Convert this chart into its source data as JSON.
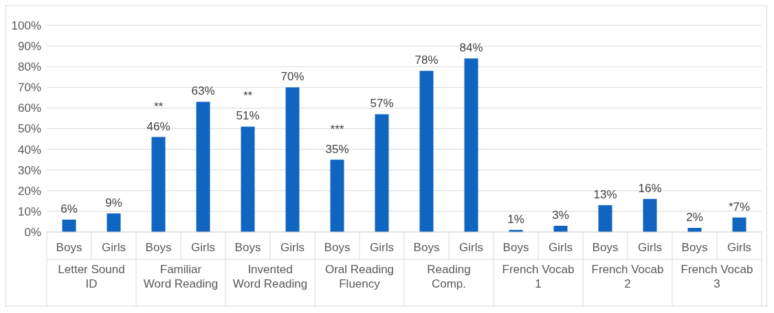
{
  "chart_data": {
    "type": "bar",
    "categories": [
      "Letter Sound ID",
      "Familiar Word Reading",
      "Invented Word Reading",
      "Oral Reading Fluency",
      "Reading Comp.",
      "French Vocab 1",
      "French Vocab 2",
      "French Vocab 3"
    ],
    "series": [
      {
        "name": "Boys",
        "color": "#0f65bf",
        "values": [
          6,
          46,
          51,
          35,
          78,
          1,
          13,
          2
        ],
        "value_labels": [
          "6%",
          "**\n46%",
          "**\n51%",
          "***\n35%",
          "78%",
          "1%",
          "13%",
          "2%"
        ]
      },
      {
        "name": "Girls",
        "color": "#0f65bf",
        "values": [
          9,
          63,
          70,
          57,
          84,
          3,
          16,
          7
        ],
        "value_labels": [
          "9%",
          "63%",
          "70%",
          "57%",
          "84%",
          "3%",
          "16%",
          "*7%"
        ]
      }
    ],
    "ylim": [
      0,
      100
    ],
    "yticks": [
      {
        "value": 0,
        "label": "0%"
      },
      {
        "value": 10,
        "label": "10%"
      },
      {
        "value": 20,
        "label": "20%"
      },
      {
        "value": 30,
        "label": "30%"
      },
      {
        "value": 40,
        "label": "40%"
      },
      {
        "value": 50,
        "label": "50%"
      },
      {
        "value": 60,
        "label": "60%"
      },
      {
        "value": 70,
        "label": "70%"
      },
      {
        "value": 80,
        "label": "80%"
      },
      {
        "value": 90,
        "label": "90%"
      },
      {
        "value": 100,
        "label": "100%"
      }
    ],
    "grid": "y"
  }
}
